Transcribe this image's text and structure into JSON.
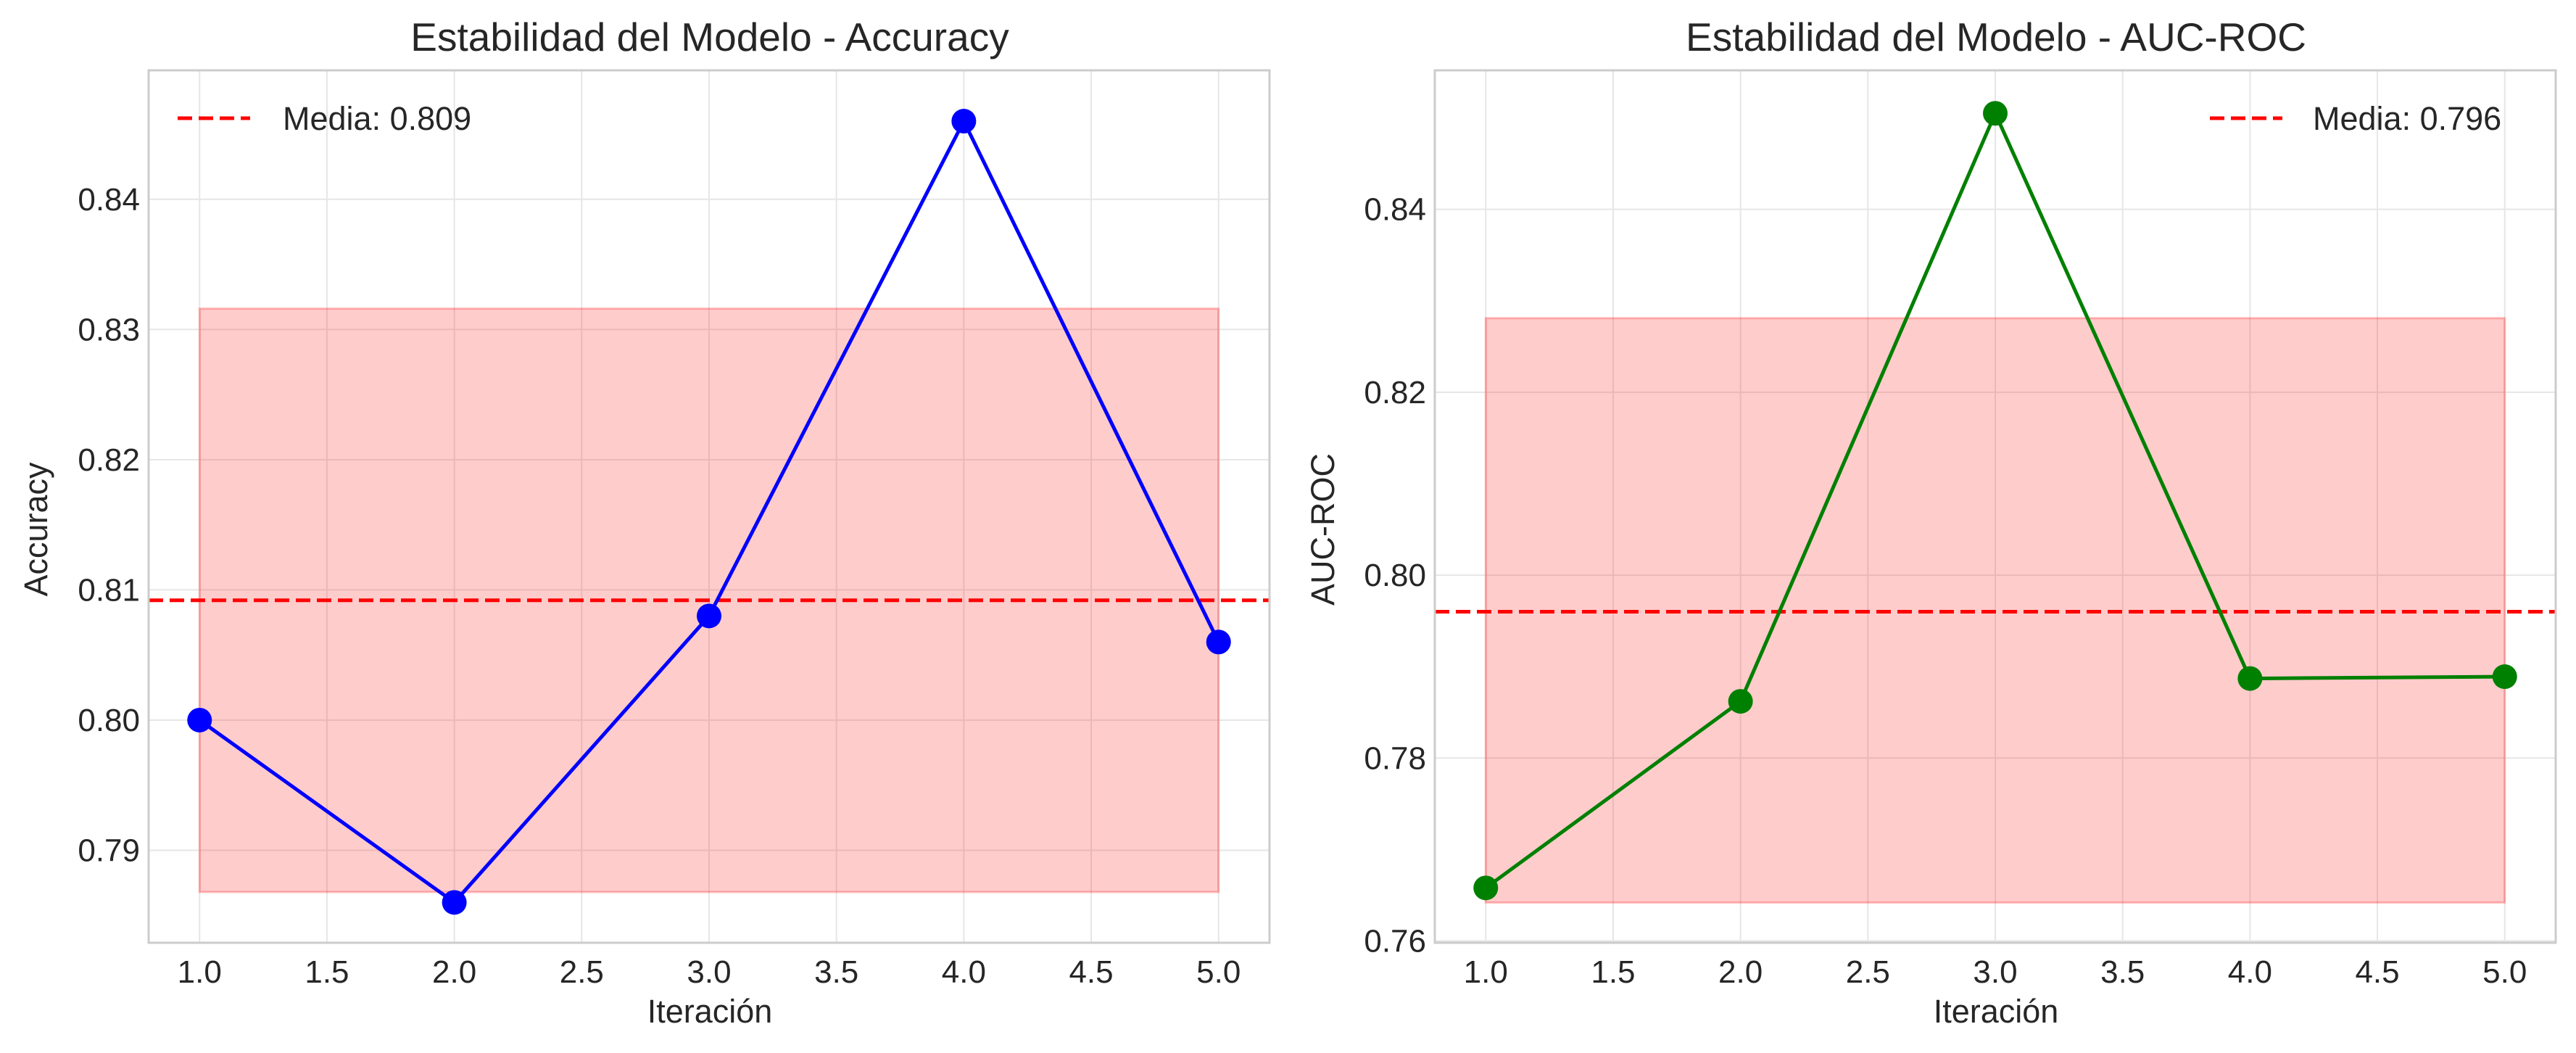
{
  "chart_data": [
    {
      "type": "line",
      "title": "Estabilidad del Modelo - Accuracy",
      "xlabel": "Iteración",
      "ylabel": "Accuracy",
      "x": [
        1.0,
        2.0,
        3.0,
        4.0,
        5.0
      ],
      "series": [
        {
          "values": [
            0.8,
            0.786,
            0.808,
            0.846,
            0.806
          ],
          "color": "#0000ff",
          "marker": "circle"
        }
      ],
      "mean_line": {
        "label": "Media: 0.809",
        "value": 0.8092,
        "color": "#ff0000",
        "style": "dashed"
      },
      "band": {
        "lower": 0.7868,
        "upper": 0.8316,
        "color": "#ff0000",
        "opacity": 0.2
      },
      "xticks": [
        "1.0",
        "1.5",
        "2.0",
        "2.5",
        "3.0",
        "3.5",
        "4.0",
        "4.5",
        "5.0"
      ],
      "yticks": [
        "0.79",
        "0.80",
        "0.81",
        "0.82",
        "0.83",
        "0.84"
      ],
      "xlim": [
        0.8,
        5.2
      ],
      "ylim": [
        0.7829,
        0.8499
      ],
      "grid": true,
      "legend_position": "top-left"
    },
    {
      "type": "line",
      "title": "Estabilidad del Modelo - AUC-ROC",
      "xlabel": "Iteración",
      "ylabel": "AUC-ROC",
      "x": [
        1.0,
        2.0,
        3.0,
        4.0,
        5.0
      ],
      "series": [
        {
          "values": [
            0.7658,
            0.7862,
            0.8505,
            0.7887,
            0.7889
          ],
          "color": "#008000",
          "marker": "circle"
        }
      ],
      "mean_line": {
        "label": "Media: 0.796",
        "value": 0.796,
        "color": "#ff0000",
        "style": "dashed"
      },
      "band": {
        "lower": 0.7642,
        "upper": 0.8281,
        "color": "#ff0000",
        "opacity": 0.2
      },
      "xticks": [
        "1.0",
        "1.5",
        "2.0",
        "2.5",
        "3.0",
        "3.5",
        "4.0",
        "4.5",
        "5.0"
      ],
      "yticks": [
        "0.76",
        "0.78",
        "0.80",
        "0.82",
        "0.84"
      ],
      "xlim": [
        0.8,
        5.2
      ],
      "ylim": [
        0.7598,
        0.8552
      ],
      "grid": true,
      "legend_position": "top-right"
    }
  ]
}
